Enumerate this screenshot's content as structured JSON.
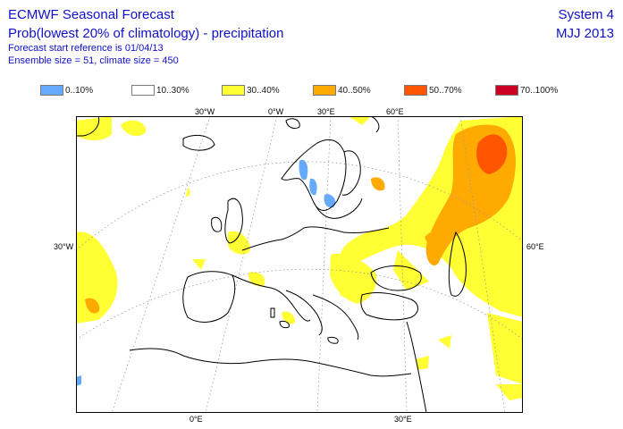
{
  "header": {
    "title": "ECMWF Seasonal Forecast",
    "subtitle": "Prob(lowest 20% of climatology) - precipitation",
    "forecast_start": "Forecast start reference is 01/04/13",
    "ensemble": "Ensemble size = 51, climate size = 450",
    "system": "System 4",
    "period": "MJJ 2013"
  },
  "legend": [
    {
      "label": "0..10%",
      "color": "#66aaff"
    },
    {
      "label": "10..30%",
      "color": "#ffffff"
    },
    {
      "label": "30..40%",
      "color": "#ffff33"
    },
    {
      "label": "40..50%",
      "color": "#ffaa00"
    },
    {
      "label": "50..70%",
      "color": "#ff5500"
    },
    {
      "label": "70..100%",
      "color": "#cc0022"
    }
  ],
  "map": {
    "top_labels": [
      "30°W",
      "0°W",
      "30°E",
      "60°E"
    ],
    "left_label": "30°W",
    "right_label": "60°E",
    "bottom_labels": [
      "0°E",
      "30°E"
    ]
  }
}
